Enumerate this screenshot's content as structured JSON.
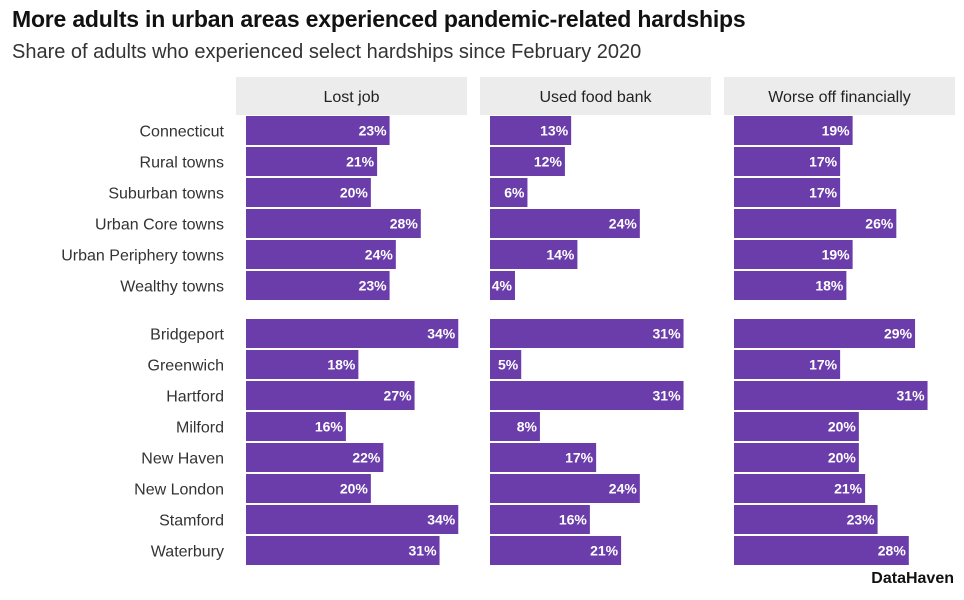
{
  "title": "More adults in urban areas experienced pandemic-related hardships",
  "subtitle": "Share of adults who experienced select hardships since February 2020",
  "source": "DataHaven",
  "colors": {
    "bar": "#6a3daa",
    "facet_bg": "#ececec",
    "bar_label": "#ffffff"
  },
  "chart_data": {
    "type": "bar",
    "orientation": "horizontal",
    "title": "More adults in urban areas experienced pandemic-related hardships",
    "subtitle": "Share of adults who experienced select hardships since February 2020",
    "facets": [
      "Lost job",
      "Used food bank",
      "Worse off financially"
    ],
    "groups": [
      {
        "categories": [
          "Connecticut",
          "Rural towns",
          "Suburban towns",
          "Urban Core towns",
          "Urban Periphery towns",
          "Wealthy towns"
        ],
        "series": [
          {
            "facet": "Lost job",
            "values": [
              23,
              21,
              20,
              28,
              24,
              23
            ]
          },
          {
            "facet": "Used food bank",
            "values": [
              13,
              12,
              6,
              24,
              14,
              4
            ]
          },
          {
            "facet": "Worse off financially",
            "values": [
              19,
              17,
              17,
              26,
              19,
              18
            ]
          }
        ]
      },
      {
        "categories": [
          "Bridgeport",
          "Greenwich",
          "Hartford",
          "Milford",
          "New Haven",
          "New London",
          "Stamford",
          "Waterbury"
        ],
        "series": [
          {
            "facet": "Lost job",
            "values": [
              34,
              18,
              27,
              16,
              22,
              20,
              34,
              31
            ]
          },
          {
            "facet": "Used food bank",
            "values": [
              31,
              5,
              31,
              8,
              17,
              24,
              16,
              21
            ]
          },
          {
            "facet": "Worse off financially",
            "values": [
              29,
              17,
              31,
              20,
              20,
              21,
              23,
              28
            ]
          }
        ]
      }
    ],
    "value_suffix": "%",
    "xlim": [
      0,
      37
    ],
    "grid": false,
    "legend": "none"
  }
}
